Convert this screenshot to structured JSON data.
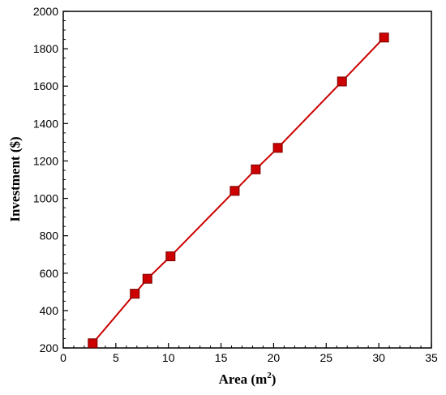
{
  "chart_data": {
    "type": "line",
    "x": [
      2.8,
      6.8,
      8.0,
      10.2,
      16.3,
      18.3,
      20.4,
      26.5,
      30.5
    ],
    "series": [
      {
        "values": [
          225,
          490,
          570,
          690,
          1040,
          1155,
          1270,
          1625,
          1860
        ]
      }
    ],
    "xlabel": "Area (m",
    "xlabel_superscript": "2",
    "xlabel_suffix": ")",
    "ylabel": "Investment ($)",
    "xlim": [
      0,
      35
    ],
    "ylim": [
      200,
      2000
    ],
    "xticks": [
      "0",
      "5",
      "10",
      "15",
      "20",
      "25",
      "30",
      "35"
    ],
    "yticks": [
      "200",
      "400",
      "600",
      "800",
      "1000",
      "1200",
      "1400",
      "1600",
      "1800",
      "2000"
    ],
    "grid": false,
    "legend": "none",
    "marker": "square",
    "colors": {
      "line": "#cc0000",
      "marker_fill": "#cc0000",
      "marker_edge": "#7a0000",
      "axis": "#000000"
    }
  }
}
